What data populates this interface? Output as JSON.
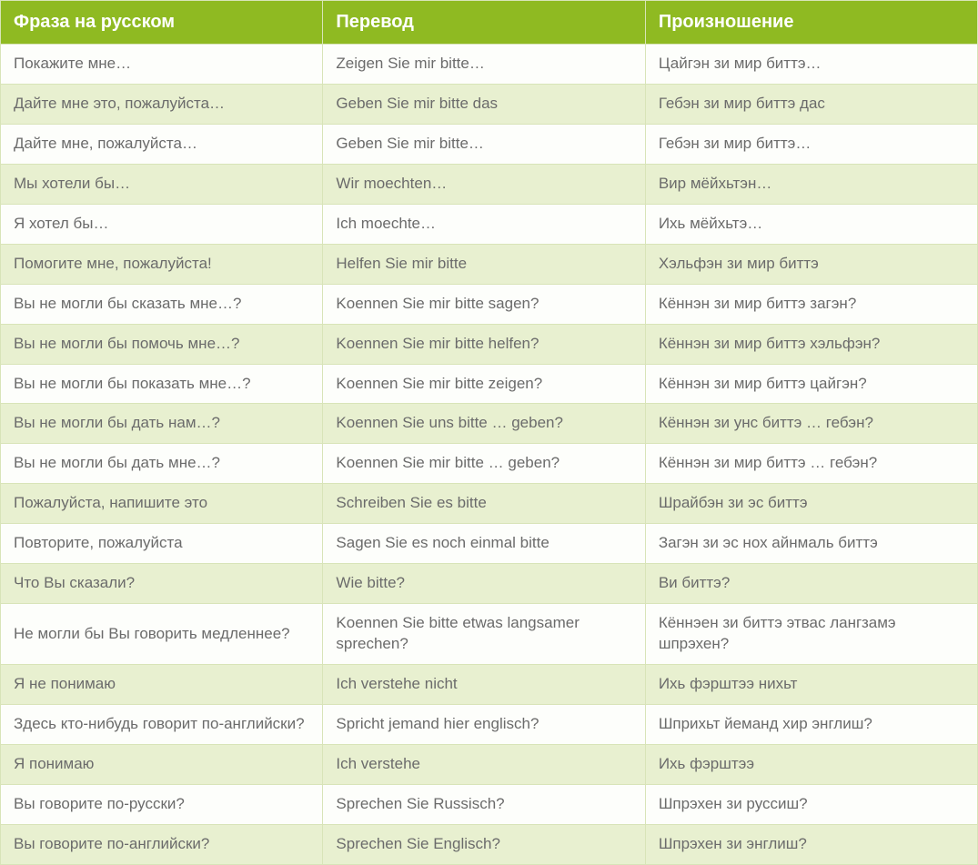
{
  "table": {
    "header_bg": "#8fba22",
    "header_text_color": "#ffffff",
    "row_odd_bg": "#fdfefb",
    "row_even_bg": "#e8f0d0",
    "border_color": "#d8e4b8",
    "cell_text_color": "#6b6b6b",
    "header_font_size": 20,
    "cell_font_size": 17,
    "columns": [
      "Фраза на русском",
      "Перевод",
      "Произношение"
    ],
    "rows": [
      [
        "Покажите мне…",
        " Zeigen Sie mir bitte…",
        "Цайгэн зи мир биттэ…"
      ],
      [
        "Дайте мне это, пожалуйста…",
        "Geben Sie mir bitte das",
        "Гебэн зи мир биттэ дас"
      ],
      [
        "Дайте мне, пожалуйста…",
        "Geben Sie mir bitte…",
        "Гебэн зи мир биттэ…"
      ],
      [
        "Мы хотели бы…",
        "Wir moechten…",
        "Вир мёйхьтэн…"
      ],
      [
        "Я хотел бы…",
        "Ich moechte…",
        "Ихь мёйхьтэ…"
      ],
      [
        "Помогите мне, пожалуйста!",
        "Helfen Sie mir bitte",
        "Хэльфэн зи мир биттэ"
      ],
      [
        "Вы не могли бы сказать мне…?",
        "Koennen Sie mir bitte sagen?",
        "Кённэн зи мир биттэ загэн?"
      ],
      [
        "Вы не могли бы помочь мне…?",
        "Koennen Sie mir bitte helfen?",
        "Кённэн зи мир биттэ хэльфэн?"
      ],
      [
        "Вы не могли бы показать мне…?",
        "Koennen Sie mir bitte zeigen?",
        "Кённэн зи мир биттэ цайгэн?"
      ],
      [
        "Вы не могли бы дать нам…?",
        "Koennen Sie uns bitte … geben?",
        "Кённэн зи унс биттэ … гебэн?"
      ],
      [
        "Вы не могли бы дать мне…?",
        "Koennen Sie mir bitte … geben?",
        "Кённэн зи мир биттэ … гебэн?"
      ],
      [
        " Пожалуйста, напишите это",
        "Schreiben Sie es bitte",
        "Шрайбэн зи эс биттэ"
      ],
      [
        " Повторите, пожалуйста",
        "Sagen Sie es noch einmal bitte",
        "Загэн зи эс нох айнмаль биттэ"
      ],
      [
        " Что Вы сказали?",
        "Wie bitte?",
        "Ви биттэ?"
      ],
      [
        " Не могли бы Вы говорить медленнее?",
        "Koennen Sie bitte etwas langsamer sprechen?",
        "Кённэен зи биттэ этвас лангзамэ шпрэхен?"
      ],
      [
        " Я не понимаю",
        "Ich verstehe nicht",
        "Ихь фэрштээ нихьт"
      ],
      [
        " Здесь кто-нибудь говорит по-английски?",
        "Spricht jemand hier englisch?",
        "Шприхьт йеманд хир энглиш?"
      ],
      [
        " Я понимаю",
        "Ich verstehe",
        "Ихь фэрштээ"
      ],
      [
        "Вы говорите по-русски?",
        "Sprechen Sie Russisch?",
        "Шпрэхен зи руссиш?"
      ],
      [
        "Вы говорите по-английски?",
        "Sprechen Sie Englisch?",
        "Шпрэхен зи энглиш?"
      ]
    ]
  }
}
